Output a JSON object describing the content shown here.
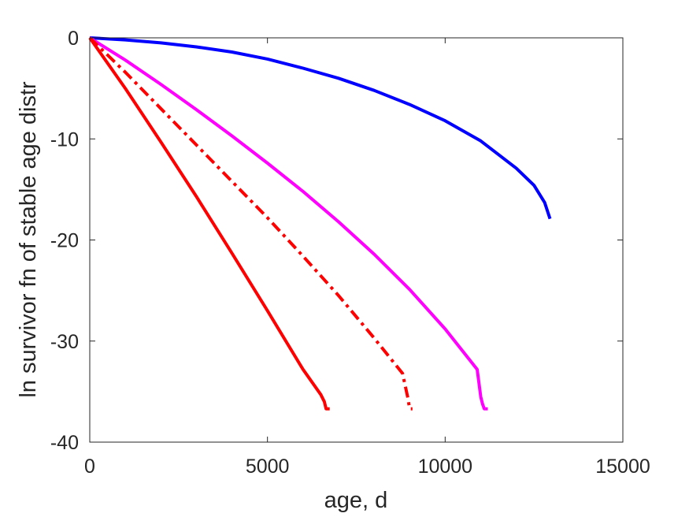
{
  "chart_data": {
    "type": "line",
    "title": "",
    "xlabel": "age, d",
    "ylabel": "ln survivor fn of stable age distr",
    "xlim": [
      0,
      15000
    ],
    "ylim": [
      -40,
      0
    ],
    "xticks": [
      0,
      5000,
      10000,
      15000
    ],
    "xtick_labels": [
      "0",
      "5000",
      "10000",
      "15000"
    ],
    "yticks": [
      0,
      -10,
      -20,
      -30,
      -40
    ],
    "ytick_labels": [
      "0",
      "-10",
      "-20",
      "-30",
      "-40"
    ],
    "grid": false,
    "legend": false,
    "series": [
      {
        "color": "#0000ff",
        "style": "solid",
        "x": [
          0,
          1000,
          2000,
          3000,
          4000,
          5000,
          6000,
          7000,
          8000,
          9000,
          10000,
          11000,
          12000,
          12500,
          12800,
          12950
        ],
        "y": [
          0,
          -0.2,
          -0.5,
          -0.9,
          -1.4,
          -2.1,
          -3.0,
          -4.0,
          -5.2,
          -6.6,
          -8.2,
          -10.2,
          -12.9,
          -14.6,
          -16.3,
          -17.9
        ]
      },
      {
        "color": "#ff00ff",
        "style": "solid",
        "x": [
          0,
          1000,
          2000,
          3000,
          4000,
          5000,
          6000,
          7000,
          8000,
          9000,
          10000,
          10900,
          11000,
          11050,
          11100,
          11200
        ],
        "y": [
          0,
          -2.2,
          -4.6,
          -7.1,
          -9.7,
          -12.4,
          -15.2,
          -18.2,
          -21.4,
          -24.9,
          -28.8,
          -32.8,
          -35.5,
          -36.2,
          -36.7,
          -36.7
        ]
      },
      {
        "color": "#ff0000",
        "style": "dashdot",
        "x": [
          0,
          1000,
          2000,
          3000,
          4000,
          5000,
          6000,
          7000,
          8000,
          8800,
          8950,
          9000,
          9080
        ],
        "y": [
          0,
          -3.4,
          -7.0,
          -10.6,
          -14.2,
          -17.8,
          -21.6,
          -25.5,
          -29.7,
          -33.2,
          -35.6,
          -36.7,
          -36.7
        ]
      },
      {
        "color": "#ff0000",
        "style": "solid",
        "x": [
          0,
          1000,
          2000,
          3000,
          4000,
          5000,
          6000,
          6500,
          6600,
          6650,
          6750
        ],
        "y": [
          0,
          -5.0,
          -10.3,
          -15.7,
          -21.3,
          -27.0,
          -32.8,
          -35.3,
          -36.0,
          -36.7,
          -36.7
        ]
      }
    ]
  }
}
